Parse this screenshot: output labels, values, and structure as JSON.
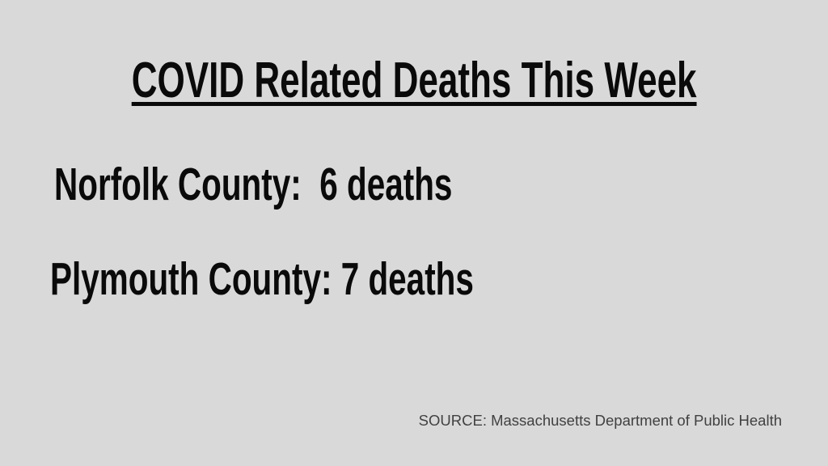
{
  "slide": {
    "title": "COVID Related Deaths This Week",
    "stats": [
      {
        "county": "Norfolk County",
        "deaths": 6,
        "text": "Norfolk County:  6 deaths"
      },
      {
        "county": "Plymouth County",
        "deaths": 7,
        "text": "Plymouth County: 7 deaths"
      }
    ],
    "source": "SOURCE: Massachusetts Department of Public Health"
  },
  "colors": {
    "background": "#d9d9d9",
    "title_text": "#0a0a0a",
    "stat_text": "#0a0a0a",
    "source_text": "#414141"
  }
}
